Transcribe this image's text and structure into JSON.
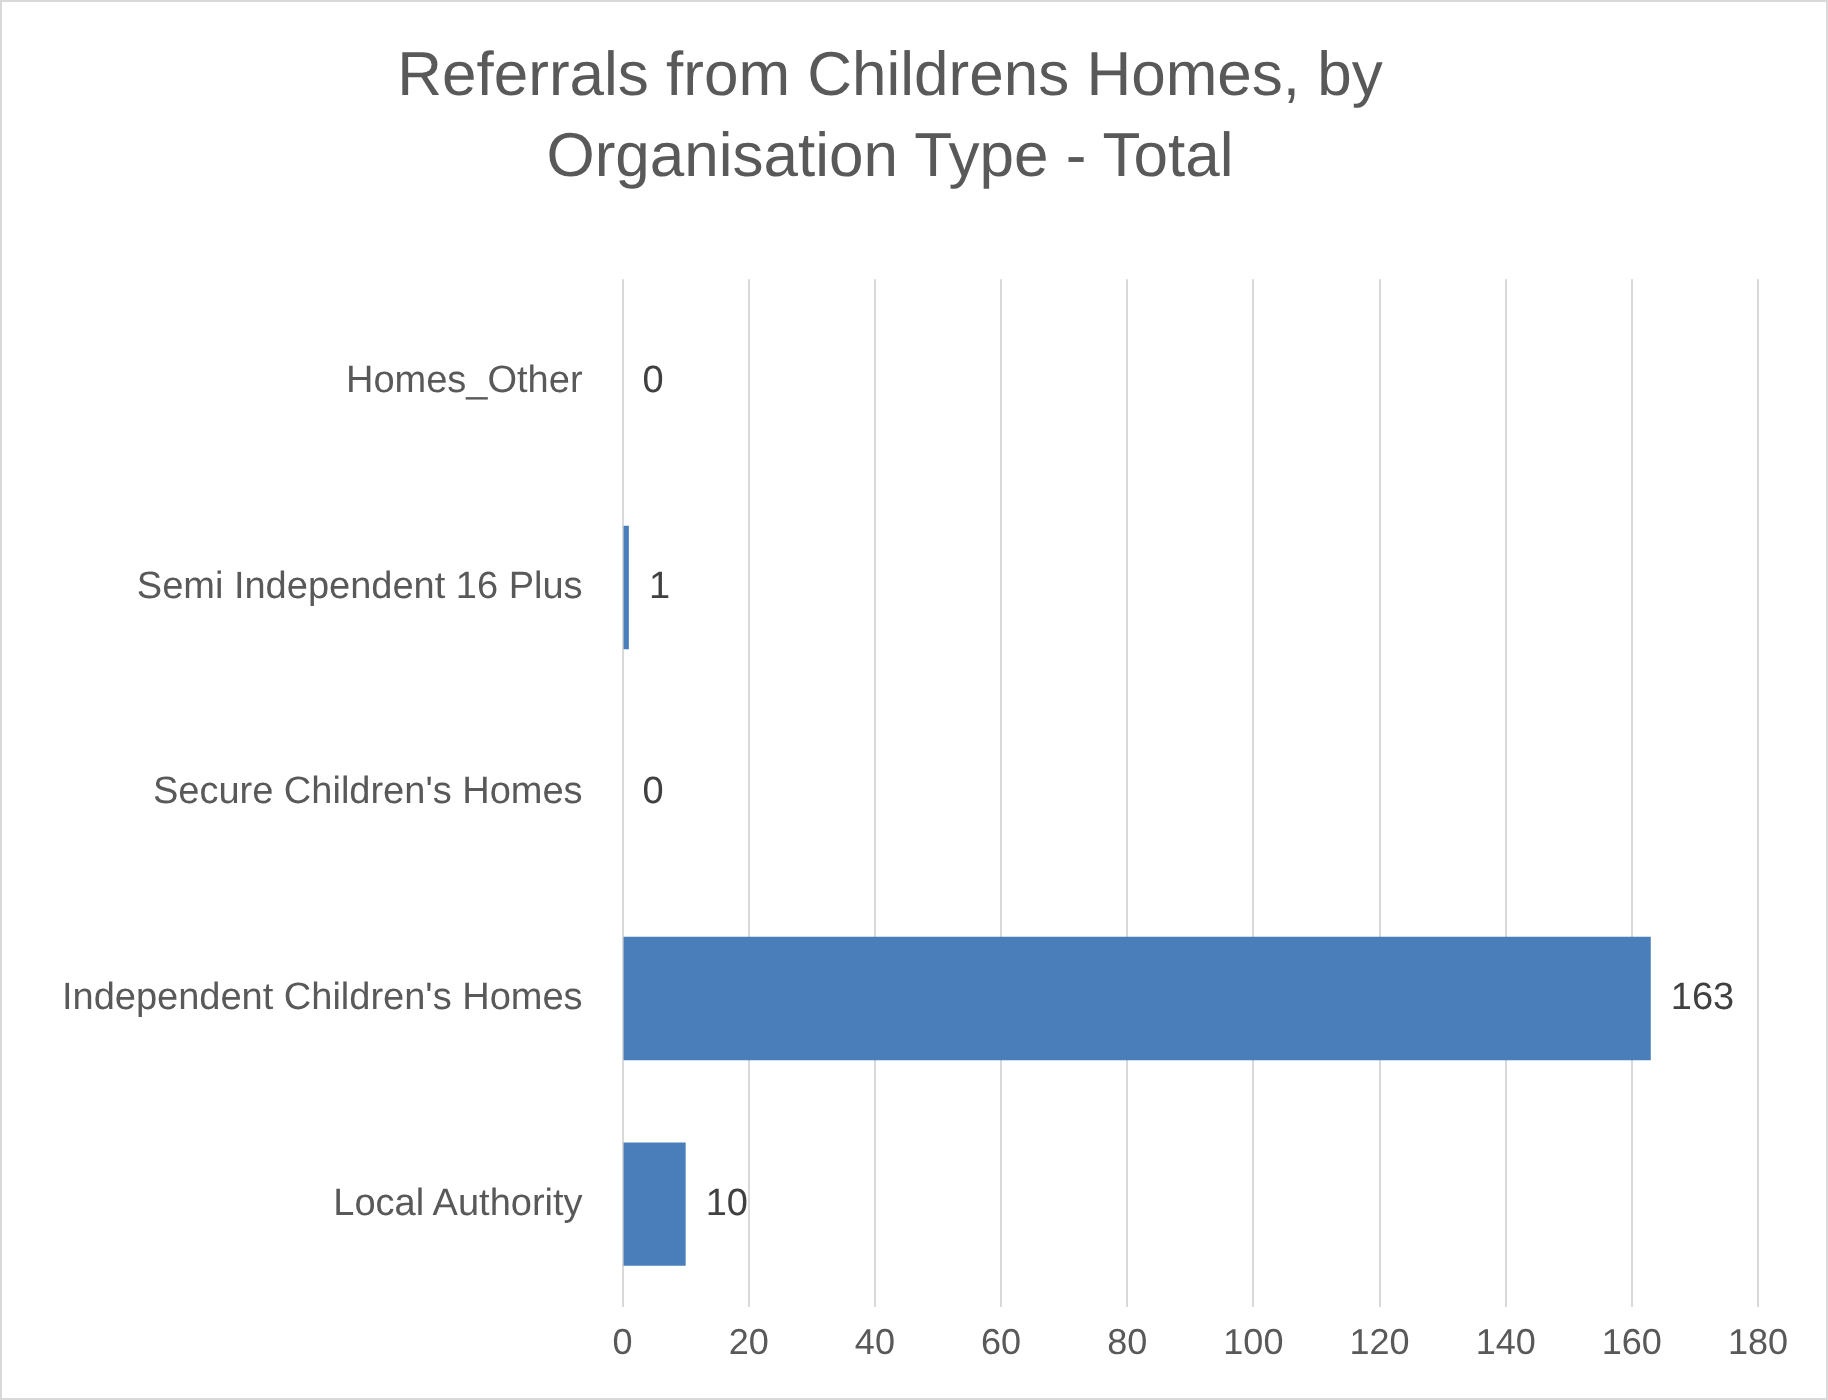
{
  "chart_data": {
    "type": "bar",
    "orientation": "horizontal",
    "title": "Referrals from Childrens Homes, by Organisation Type - Total",
    "categories": [
      "Homes_Other",
      "Semi Independent 16 Plus",
      "Secure Children's Homes",
      "Independent Children's Homes",
      "Local Authority"
    ],
    "values": [
      0,
      1,
      0,
      163,
      10
    ],
    "color": "#4a7ebb",
    "xlim": [
      0,
      180
    ],
    "xticks": [
      0,
      20,
      40,
      60,
      80,
      100,
      120,
      140,
      160,
      180
    ],
    "grid": "x",
    "legend": false,
    "data_labels": true
  }
}
